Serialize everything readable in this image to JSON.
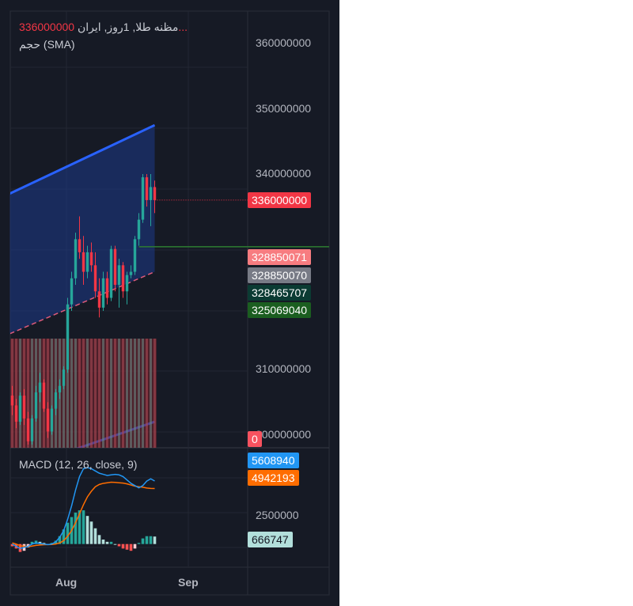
{
  "header": {
    "symbol": "مظنه طلا, 1روز, ایران",
    "last_price": "336000000...",
    "volume_label": "حجم (SMA)"
  },
  "macd": {
    "label": "MACD (12, 26, close, 9)"
  },
  "price_axis": {
    "ticks": [
      "360000000",
      "350000000",
      "340000000",
      "310000000",
      "300000000"
    ],
    "price_tag": "336000000",
    "level_tags": [
      "328850071",
      "328850070",
      "328465707",
      "325069040"
    ],
    "volume_tag": "0"
  },
  "macd_axis": {
    "ticks": [
      "2500000",
      "0"
    ],
    "tags": [
      "5608940",
      "4942193",
      "666747"
    ]
  },
  "time_axis": {
    "labels": [
      "Aug",
      "Sep"
    ]
  },
  "colors": {
    "background": "#161a25",
    "up": "#26a69a",
    "down": "#f23645",
    "channel_line": "#2962ff",
    "channel_fill": "#1e3a8a",
    "macd_line": "#2196f3",
    "signal_line": "#ff6d00",
    "price_tag": "#f23645",
    "level_1": "#f77c80",
    "level_2": "#787b86",
    "level_3": "#0b3b33",
    "level_4": "#1b5e20",
    "hist_tag": "#b2dfdb"
  },
  "chart_data": {
    "type": "candlestick",
    "interval": "1 day",
    "y_range": [
      298000000,
      365000000
    ],
    "last_price": 336000000,
    "horizontal_level": 328850070,
    "ohlc": [
      [
        306000000,
        307500000,
        303000000,
        304500000
      ],
      [
        304500000,
        305500000,
        301000000,
        302000000
      ],
      [
        302000000,
        306500000,
        301500000,
        306000000
      ],
      [
        306000000,
        307000000,
        301500000,
        302500000
      ],
      [
        302500000,
        303500000,
        298500000,
        299000000
      ],
      [
        299000000,
        303000000,
        298500000,
        302500000
      ],
      [
        302500000,
        307500000,
        302000000,
        306500000
      ],
      [
        306500000,
        309500000,
        305000000,
        308000000
      ],
      [
        308000000,
        308500000,
        303500000,
        304000000
      ],
      [
        304000000,
        305000000,
        299500000,
        300500000
      ],
      [
        300500000,
        304500000,
        300000000,
        304000000
      ],
      [
        304000000,
        307000000,
        303000000,
        306500000
      ],
      [
        306500000,
        308500000,
        305500000,
        307500000
      ],
      [
        307500000,
        310500000,
        307000000,
        310000000
      ],
      [
        310000000,
        321000000,
        309500000,
        320000000
      ],
      [
        320000000,
        325000000,
        319000000,
        324000000
      ],
      [
        324000000,
        331000000,
        323000000,
        330000000
      ],
      [
        330000000,
        333500000,
        327000000,
        328000000
      ],
      [
        328000000,
        330500000,
        323000000,
        325000000
      ],
      [
        325000000,
        329000000,
        324000000,
        328000000
      ],
      [
        328000000,
        329500000,
        325000000,
        326000000
      ],
      [
        326000000,
        328000000,
        321000000,
        322000000
      ],
      [
        322000000,
        324000000,
        318000000,
        319500000
      ],
      [
        319500000,
        325000000,
        319000000,
        324000000
      ],
      [
        324000000,
        325000000,
        320000000,
        321000000
      ],
      [
        321000000,
        329000000,
        320500000,
        328500000
      ],
      [
        328500000,
        329000000,
        322000000,
        323000000
      ],
      [
        323000000,
        327000000,
        319500000,
        326000000
      ],
      [
        326000000,
        326500000,
        321000000,
        322000000
      ],
      [
        322000000,
        325000000,
        320000000,
        324500000
      ],
      [
        324500000,
        326000000,
        324000000,
        325000000
      ],
      [
        325000000,
        330500000,
        324500000,
        330000000
      ],
      [
        330000000,
        334000000,
        329000000,
        333000000
      ],
      [
        333000000,
        340000000,
        332500000,
        339500000
      ],
      [
        339500000,
        340000000,
        335000000,
        336000000
      ],
      [
        336000000,
        340000000,
        332000000,
        338000000
      ],
      [
        338000000,
        339000000,
        334000000,
        336000000
      ]
    ],
    "channel": {
      "upper": [
        [
          0,
          337000000
        ],
        [
          36,
          347500000
        ]
      ],
      "lower": [
        [
          -2,
          294000000
        ],
        [
          36,
          302000000
        ]
      ],
      "median": [
        [
          0,
          315500000
        ],
        [
          36,
          325000000
        ]
      ]
    },
    "macd": {
      "y_range": [
        -1500000,
        8000000
      ],
      "macd": [
        0,
        -200000,
        -400000,
        -300000,
        -200000,
        0,
        100000,
        50000,
        0,
        -50000,
        0,
        200000,
        600000,
        1200000,
        2200000,
        3400000,
        4800000,
        6000000,
        6700000,
        6800000,
        6700000,
        6500000,
        6300000,
        6200000,
        6100000,
        6150000,
        6200000,
        6150000,
        6000000,
        5700000,
        5400000,
        5200000,
        5000000,
        5200000,
        5600000,
        5800000,
        5608940
      ],
      "signal": [
        100000,
        0,
        -150000,
        -200000,
        -220000,
        -180000,
        -120000,
        -80000,
        -60000,
        -50000,
        -40000,
        0,
        100000,
        300000,
        700000,
        1200000,
        1900000,
        2700000,
        3500000,
        4200000,
        4700000,
        5100000,
        5300000,
        5400000,
        5450000,
        5500000,
        5480000,
        5450000,
        5420000,
        5350000,
        5250000,
        5150000,
        5100000,
        5050000,
        4980000,
        4950000,
        4942193
      ],
      "histogram": [
        -200000,
        -400000,
        -700000,
        -600000,
        -300000,
        200000,
        300000,
        200000,
        100000,
        0,
        100000,
        300000,
        700000,
        1300000,
        1900000,
        2400000,
        2800000,
        3000000,
        3000000,
        2500000,
        2000000,
        1400000,
        800000,
        400000,
        200000,
        200000,
        0,
        -200000,
        -400000,
        -500000,
        -600000,
        -400000,
        100000,
        500000,
        700000,
        700000,
        666747
      ]
    }
  }
}
